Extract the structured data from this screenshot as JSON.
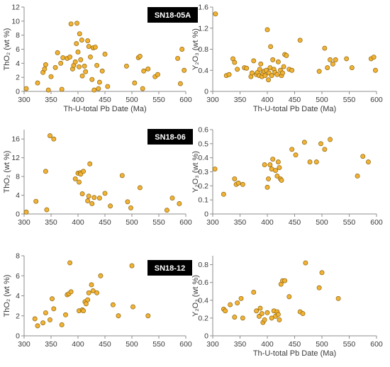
{
  "colors": {
    "marker_fill": "#f2b233",
    "marker_edge": "#8a6410",
    "badge_bg": "#000000",
    "badge_text": "#ffffff",
    "axis": "#8c8c8c"
  },
  "chart_data": [
    {
      "id": "sn18-05a-tho2",
      "type": "scatter",
      "badge": "SN18-05A",
      "xlabel": "Th-U-total Pb Date (Ma)",
      "ylabel": "ThO₂ (wt %)",
      "xlim": [
        300,
        600
      ],
      "ylim": [
        0,
        12
      ],
      "xticks": [
        300,
        350,
        400,
        450,
        500,
        550,
        600
      ],
      "yticks": [
        0,
        2,
        4,
        6,
        8,
        10,
        12
      ],
      "ytick_labels": [
        "0",
        "2",
        "4",
        "6",
        "8",
        "10",
        "12"
      ],
      "points": [
        [
          304,
          0.4
        ],
        [
          325,
          1.2
        ],
        [
          335,
          2.7
        ],
        [
          338,
          3.2
        ],
        [
          340,
          3.8
        ],
        [
          345,
          0.2
        ],
        [
          350,
          2.1
        ],
        [
          358,
          3.4
        ],
        [
          362,
          5.5
        ],
        [
          368,
          4.0
        ],
        [
          370,
          0.3
        ],
        [
          372,
          4.8
        ],
        [
          380,
          4.7
        ],
        [
          385,
          4.9
        ],
        [
          387,
          9.6
        ],
        [
          390,
          3.2
        ],
        [
          392,
          3.7
        ],
        [
          395,
          4.2
        ],
        [
          397,
          6.8
        ],
        [
          398,
          9.7
        ],
        [
          400,
          5.6
        ],
        [
          402,
          3.5
        ],
        [
          403,
          8.2
        ],
        [
          405,
          4.5
        ],
        [
          407,
          7.3
        ],
        [
          408,
          2.2
        ],
        [
          412,
          3.6
        ],
        [
          414,
          2.8
        ],
        [
          418,
          7.2
        ],
        [
          420,
          6.4
        ],
        [
          423,
          4.9
        ],
        [
          426,
          1.7
        ],
        [
          428,
          6.2
        ],
        [
          430,
          0.2
        ],
        [
          432,
          6.3
        ],
        [
          435,
          3.7
        ],
        [
          438,
          0.4
        ],
        [
          440,
          1.3
        ],
        [
          445,
          2.9
        ],
        [
          450,
          5.3
        ],
        [
          455,
          0.7
        ],
        [
          490,
          3.6
        ],
        [
          505,
          1.2
        ],
        [
          512,
          4.8
        ],
        [
          515,
          5.0
        ],
        [
          520,
          0.4
        ],
        [
          522,
          2.9
        ],
        [
          530,
          3.2
        ],
        [
          543,
          2.1
        ],
        [
          548,
          2.4
        ],
        [
          585,
          4.7
        ],
        [
          590,
          1.1
        ],
        [
          593,
          6.0
        ],
        [
          597,
          3.0
        ]
      ]
    },
    {
      "id": "sn18-05a-y2o3",
      "type": "scatter",
      "xlabel": "Th-U-total Pb Date (Ma)",
      "ylabel": "Y₂O₃ (wt %)",
      "xlim": [
        300,
        600
      ],
      "ylim": [
        0,
        1.6
      ],
      "xticks": [
        300,
        350,
        400,
        450,
        500,
        550,
        600
      ],
      "yticks": [
        0,
        0.4,
        0.8,
        1.2,
        1.6
      ],
      "ytick_labels": [
        "0",
        "0.4",
        "0.8",
        "1.2",
        "1.6"
      ],
      "points": [
        [
          305,
          1.47
        ],
        [
          325,
          0.3
        ],
        [
          330,
          0.32
        ],
        [
          337,
          0.62
        ],
        [
          340,
          0.55
        ],
        [
          345,
          0.42
        ],
        [
          358,
          0.45
        ],
        [
          362,
          0.44
        ],
        [
          370,
          0.28
        ],
        [
          372,
          0.35
        ],
        [
          375,
          0.58
        ],
        [
          380,
          0.32
        ],
        [
          382,
          0.36
        ],
        [
          385,
          0.3
        ],
        [
          386,
          0.42
        ],
        [
          388,
          0.52
        ],
        [
          390,
          0.28
        ],
        [
          392,
          0.34
        ],
        [
          394,
          0.38
        ],
        [
          396,
          0.3
        ],
        [
          398,
          0.4
        ],
        [
          400,
          1.17
        ],
        [
          402,
          0.22
        ],
        [
          403,
          0.35
        ],
        [
          405,
          0.45
        ],
        [
          406,
          0.85
        ],
        [
          408,
          0.3
        ],
        [
          410,
          0.6
        ],
        [
          412,
          0.42
        ],
        [
          414,
          0.36
        ],
        [
          418,
          0.32
        ],
        [
          420,
          0.56
        ],
        [
          424,
          0.4
        ],
        [
          426,
          0.3
        ],
        [
          428,
          0.35
        ],
        [
          430,
          0.47
        ],
        [
          432,
          0.7
        ],
        [
          435,
          0.68
        ],
        [
          440,
          0.42
        ],
        [
          445,
          0.4
        ],
        [
          460,
          0.97
        ],
        [
          495,
          0.38
        ],
        [
          505,
          0.82
        ],
        [
          510,
          0.45
        ],
        [
          515,
          0.6
        ],
        [
          520,
          0.52
        ],
        [
          525,
          0.6
        ],
        [
          545,
          0.62
        ],
        [
          555,
          0.45
        ],
        [
          590,
          0.62
        ],
        [
          595,
          0.65
        ],
        [
          598,
          0.4
        ]
      ]
    },
    {
      "id": "sn18-06-tho2",
      "type": "scatter",
      "badge": "SN18-06",
      "xlabel": "",
      "ylabel": "ThO₂ (wt %)",
      "xlim": [
        300,
        600
      ],
      "ylim": [
        0,
        18
      ],
      "xticks": [
        300,
        350,
        400,
        450,
        500,
        550,
        600
      ],
      "yticks": [
        0,
        4,
        8,
        12,
        16
      ],
      "ytick_labels": [
        "0",
        "4",
        "8",
        "12",
        "16"
      ],
      "points": [
        [
          304,
          0.4
        ],
        [
          322,
          2.7
        ],
        [
          340,
          9.1
        ],
        [
          342,
          0.9
        ],
        [
          348,
          16.7
        ],
        [
          355,
          16.0
        ],
        [
          395,
          7.5
        ],
        [
          400,
          8.7
        ],
        [
          402,
          6.8
        ],
        [
          404,
          8.8
        ],
        [
          405,
          8.5
        ],
        [
          408,
          4.3
        ],
        [
          410,
          9.1
        ],
        [
          418,
          2.8
        ],
        [
          420,
          3.8
        ],
        [
          422,
          10.7
        ],
        [
          426,
          2.2
        ],
        [
          430,
          3.5
        ],
        [
          440,
          3.4
        ],
        [
          450,
          4.4
        ],
        [
          460,
          1.7
        ],
        [
          482,
          8.2
        ],
        [
          492,
          2.6
        ],
        [
          498,
          1.3
        ],
        [
          515,
          5.6
        ],
        [
          565,
          0.8
        ],
        [
          575,
          3.4
        ],
        [
          588,
          2.2
        ]
      ]
    },
    {
      "id": "sn18-06-y2o3",
      "type": "scatter",
      "xlabel": "",
      "ylabel": "Y₂O₃ (wt %)",
      "xlim": [
        300,
        600
      ],
      "ylim": [
        0,
        0.6
      ],
      "xticks": [
        300,
        350,
        400,
        450,
        500,
        550,
        600
      ],
      "yticks": [
        0,
        0.1,
        0.2,
        0.3,
        0.4,
        0.5,
        0.6
      ],
      "ytick_labels": [
        "0",
        "0.1",
        "0.2",
        "0.3",
        "0.4",
        "0.5",
        "0.6"
      ],
      "points": [
        [
          304,
          0.32
        ],
        [
          320,
          0.14
        ],
        [
          340,
          0.25
        ],
        [
          343,
          0.21
        ],
        [
          347,
          0.22
        ],
        [
          355,
          0.21
        ],
        [
          395,
          0.35
        ],
        [
          400,
          0.19
        ],
        [
          402,
          0.25
        ],
        [
          405,
          0.35
        ],
        [
          408,
          0.32
        ],
        [
          410,
          0.39
        ],
        [
          415,
          0.31
        ],
        [
          418,
          0.27
        ],
        [
          420,
          0.37
        ],
        [
          422,
          0.33
        ],
        [
          424,
          0.25
        ],
        [
          426,
          0.24
        ],
        [
          445,
          0.46
        ],
        [
          452,
          0.42
        ],
        [
          468,
          0.51
        ],
        [
          478,
          0.37
        ],
        [
          490,
          0.37
        ],
        [
          498,
          0.5
        ],
        [
          505,
          0.46
        ],
        [
          515,
          0.53
        ],
        [
          565,
          0.27
        ],
        [
          575,
          0.41
        ],
        [
          585,
          0.37
        ]
      ]
    },
    {
      "id": "sn18-12-tho2",
      "type": "scatter",
      "badge": "SN18-12",
      "xlabel": "",
      "ylabel": "ThO₂ (wt %)",
      "xlim": [
        300,
        600
      ],
      "ylim": [
        0,
        8
      ],
      "xticks": [
        300,
        350,
        400,
        450,
        500,
        550,
        600
      ],
      "yticks": [
        0,
        2,
        4,
        6,
        8
      ],
      "ytick_labels": [
        "0",
        "2",
        "4",
        "6",
        "8"
      ],
      "points": [
        [
          320,
          1.7
        ],
        [
          325,
          1.0
        ],
        [
          335,
          1.3
        ],
        [
          340,
          2.3
        ],
        [
          348,
          1.6
        ],
        [
          352,
          3.7
        ],
        [
          355,
          2.7
        ],
        [
          370,
          1.1
        ],
        [
          377,
          2.1
        ],
        [
          380,
          4.1
        ],
        [
          383,
          4.2
        ],
        [
          385,
          7.3
        ],
        [
          387,
          4.4
        ],
        [
          402,
          2.5
        ],
        [
          408,
          2.6
        ],
        [
          410,
          2.5
        ],
        [
          413,
          3.4
        ],
        [
          415,
          3.2
        ],
        [
          418,
          3.6
        ],
        [
          420,
          4.3
        ],
        [
          425,
          5.1
        ],
        [
          428,
          4.5
        ],
        [
          435,
          4.3
        ],
        [
          442,
          6.0
        ],
        [
          465,
          3.1
        ],
        [
          475,
          2.0
        ],
        [
          500,
          7.0
        ],
        [
          502,
          2.9
        ],
        [
          530,
          2.0
        ]
      ]
    },
    {
      "id": "sn18-12-y2o3",
      "type": "scatter",
      "xlabel": "Th-U-total Pb Date (Ma)",
      "ylabel": "Y₂O₃ (wt %)",
      "xlim": [
        300,
        600
      ],
      "ylim": [
        0,
        0.9
      ],
      "xticks": [
        300,
        350,
        400,
        450,
        500,
        550,
        600
      ],
      "yticks": [
        0,
        0.2,
        0.4,
        0.6,
        0.8
      ],
      "ytick_labels": [
        "0",
        "0.2",
        "0.4",
        "0.6",
        "0.8"
      ],
      "points": [
        [
          320,
          0.3
        ],
        [
          323,
          0.28
        ],
        [
          332,
          0.35
        ],
        [
          340,
          0.21
        ],
        [
          345,
          0.37
        ],
        [
          352,
          0.42
        ],
        [
          355,
          0.2
        ],
        [
          375,
          0.49
        ],
        [
          380,
          0.28
        ],
        [
          385,
          0.22
        ],
        [
          387,
          0.31
        ],
        [
          390,
          0.25
        ],
        [
          392,
          0.15
        ],
        [
          395,
          0.18
        ],
        [
          400,
          0.26
        ],
        [
          408,
          0.2
        ],
        [
          412,
          0.28
        ],
        [
          415,
          0.22
        ],
        [
          418,
          0.27
        ],
        [
          420,
          0.24
        ],
        [
          422,
          0.18
        ],
        [
          425,
          0.58
        ],
        [
          428,
          0.62
        ],
        [
          432,
          0.62
        ],
        [
          440,
          0.44
        ],
        [
          460,
          0.27
        ],
        [
          465,
          0.25
        ],
        [
          470,
          0.82
        ],
        [
          495,
          0.54
        ],
        [
          500,
          0.71
        ],
        [
          530,
          0.42
        ]
      ]
    }
  ]
}
